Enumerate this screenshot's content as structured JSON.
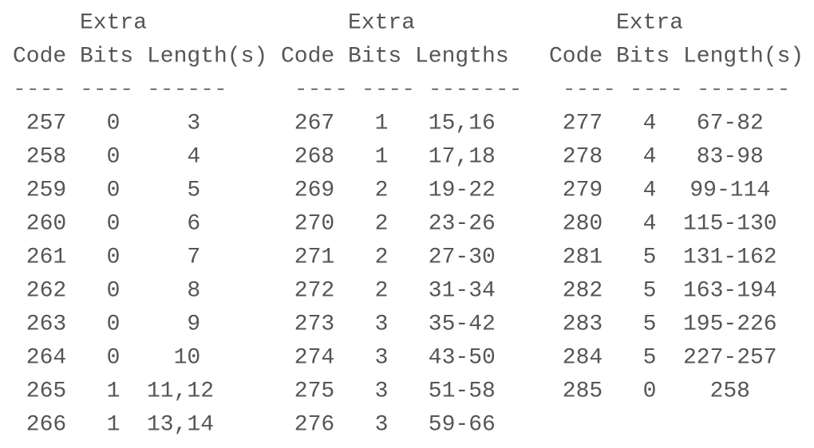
{
  "columns": [
    {
      "header_top": "Extra",
      "headers": [
        "Code",
        "Bits",
        "Length(s)"
      ],
      "rules": [
        "----",
        "----",
        "------"
      ],
      "rows": [
        [
          257,
          0,
          "3"
        ],
        [
          258,
          0,
          "4"
        ],
        [
          259,
          0,
          "5"
        ],
        [
          260,
          0,
          "6"
        ],
        [
          261,
          0,
          "7"
        ],
        [
          262,
          0,
          "8"
        ],
        [
          263,
          0,
          "9"
        ],
        [
          264,
          0,
          "10"
        ],
        [
          265,
          1,
          "11,12"
        ],
        [
          266,
          1,
          "13,14"
        ]
      ]
    },
    {
      "header_top": "Extra",
      "headers": [
        "Code",
        "Bits",
        "Lengths"
      ],
      "rules": [
        "----",
        "----",
        "-------"
      ],
      "rows": [
        [
          267,
          1,
          "15,16"
        ],
        [
          268,
          1,
          "17,18"
        ],
        [
          269,
          2,
          "19-22"
        ],
        [
          270,
          2,
          "23-26"
        ],
        [
          271,
          2,
          "27-30"
        ],
        [
          272,
          2,
          "31-34"
        ],
        [
          273,
          3,
          "35-42"
        ],
        [
          274,
          3,
          "43-50"
        ],
        [
          275,
          3,
          "51-58"
        ],
        [
          276,
          3,
          "59-66"
        ]
      ]
    },
    {
      "header_top": "Extra",
      "headers": [
        "Code",
        "Bits",
        "Length(s)"
      ],
      "rules": [
        "----",
        "----",
        "-------"
      ],
      "rows": [
        [
          277,
          4,
          "67-82"
        ],
        [
          278,
          4,
          "83-98"
        ],
        [
          279,
          4,
          "99-114"
        ],
        [
          280,
          4,
          "115-130"
        ],
        [
          281,
          5,
          "131-162"
        ],
        [
          282,
          5,
          "163-194"
        ],
        [
          283,
          5,
          "195-226"
        ],
        [
          284,
          5,
          "227-257"
        ],
        [
          285,
          0,
          "258"
        ]
      ]
    }
  ]
}
